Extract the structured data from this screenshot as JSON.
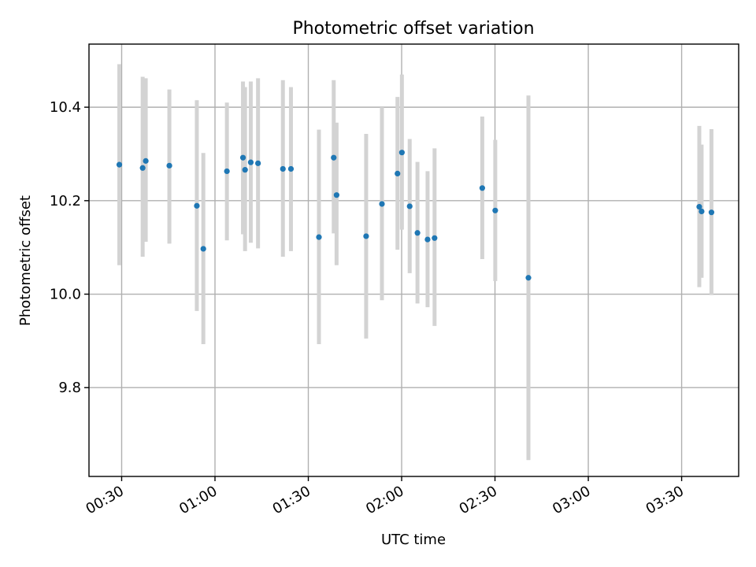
{
  "chart_data": {
    "type": "scatter",
    "title": "Photometric offset variation",
    "xlabel": "UTC time",
    "ylabel": "Photometric offset",
    "x_is_time": true,
    "xlim": [
      "00:19:30",
      "03:48:20"
    ],
    "ylim": [
      9.61,
      10.535
    ],
    "grid": true,
    "x_ticks": [
      "00:30",
      "01:00",
      "01:30",
      "02:00",
      "02:30",
      "03:00",
      "03:30"
    ],
    "y_ticks": [
      9.8,
      10.0,
      10.2,
      10.4
    ],
    "y_tick_labels": [
      "9.8",
      "10.0",
      "10.2",
      "10.4"
    ],
    "colors": {
      "marker": "#1f77b4",
      "errorbar": "#d3d3d3"
    },
    "points": [
      {
        "x": "00:29:15",
        "y": 10.277,
        "ylo": 10.062,
        "yhi": 10.492
      },
      {
        "x": "00:36:45",
        "y": 10.27,
        "ylo": 10.08,
        "yhi": 10.465
      },
      {
        "x": "00:37:45",
        "y": 10.285,
        "ylo": 10.112,
        "yhi": 10.462
      },
      {
        "x": "00:45:20",
        "y": 10.275,
        "ylo": 10.108,
        "yhi": 10.438
      },
      {
        "x": "00:54:10",
        "y": 10.189,
        "ylo": 9.964,
        "yhi": 10.415
      },
      {
        "x": "00:56:15",
        "y": 10.097,
        "ylo": 9.893,
        "yhi": 10.302
      },
      {
        "x": "01:03:50",
        "y": 10.263,
        "ylo": 10.115,
        "yhi": 10.41
      },
      {
        "x": "01:09:00",
        "y": 10.292,
        "ylo": 10.128,
        "yhi": 10.455
      },
      {
        "x": "01:09:40",
        "y": 10.266,
        "ylo": 10.092,
        "yhi": 10.443
      },
      {
        "x": "01:11:30",
        "y": 10.282,
        "ylo": 10.11,
        "yhi": 10.455
      },
      {
        "x": "01:13:50",
        "y": 10.28,
        "ylo": 10.098,
        "yhi": 10.462
      },
      {
        "x": "01:21:50",
        "y": 10.268,
        "ylo": 10.08,
        "yhi": 10.458
      },
      {
        "x": "01:24:25",
        "y": 10.268,
        "ylo": 10.092,
        "yhi": 10.443
      },
      {
        "x": "01:33:25",
        "y": 10.122,
        "ylo": 9.893,
        "yhi": 10.352
      },
      {
        "x": "01:38:10",
        "y": 10.292,
        "ylo": 10.13,
        "yhi": 10.458
      },
      {
        "x": "01:39:05",
        "y": 10.212,
        "ylo": 10.062,
        "yhi": 10.367
      },
      {
        "x": "01:48:35",
        "y": 10.124,
        "ylo": 9.905,
        "yhi": 10.343
      },
      {
        "x": "01:53:40",
        "y": 10.193,
        "ylo": 9.987,
        "yhi": 10.4
      },
      {
        "x": "01:58:40",
        "y": 10.258,
        "ylo": 10.095,
        "yhi": 10.422
      },
      {
        "x": "02:00:05",
        "y": 10.303,
        "ylo": 10.138,
        "yhi": 10.47
      },
      {
        "x": "02:02:35",
        "y": 10.188,
        "ylo": 10.045,
        "yhi": 10.332
      },
      {
        "x": "02:05:05",
        "y": 10.131,
        "ylo": 9.98,
        "yhi": 10.283
      },
      {
        "x": "02:08:20",
        "y": 10.117,
        "ylo": 9.972,
        "yhi": 10.263
      },
      {
        "x": "02:10:35",
        "y": 10.12,
        "ylo": 9.932,
        "yhi": 10.312
      },
      {
        "x": "02:25:55",
        "y": 10.227,
        "ylo": 10.075,
        "yhi": 10.38
      },
      {
        "x": "02:30:05",
        "y": 10.179,
        "ylo": 10.028,
        "yhi": 10.33
      },
      {
        "x": "02:40:45",
        "y": 10.035,
        "ylo": 9.645,
        "yhi": 10.425
      },
      {
        "x": "03:35:40",
        "y": 10.187,
        "ylo": 10.015,
        "yhi": 10.36
      },
      {
        "x": "03:36:25",
        "y": 10.177,
        "ylo": 10.035,
        "yhi": 10.32
      },
      {
        "x": "03:39:35",
        "y": 10.175,
        "ylo": 9.998,
        "yhi": 10.353
      }
    ]
  }
}
